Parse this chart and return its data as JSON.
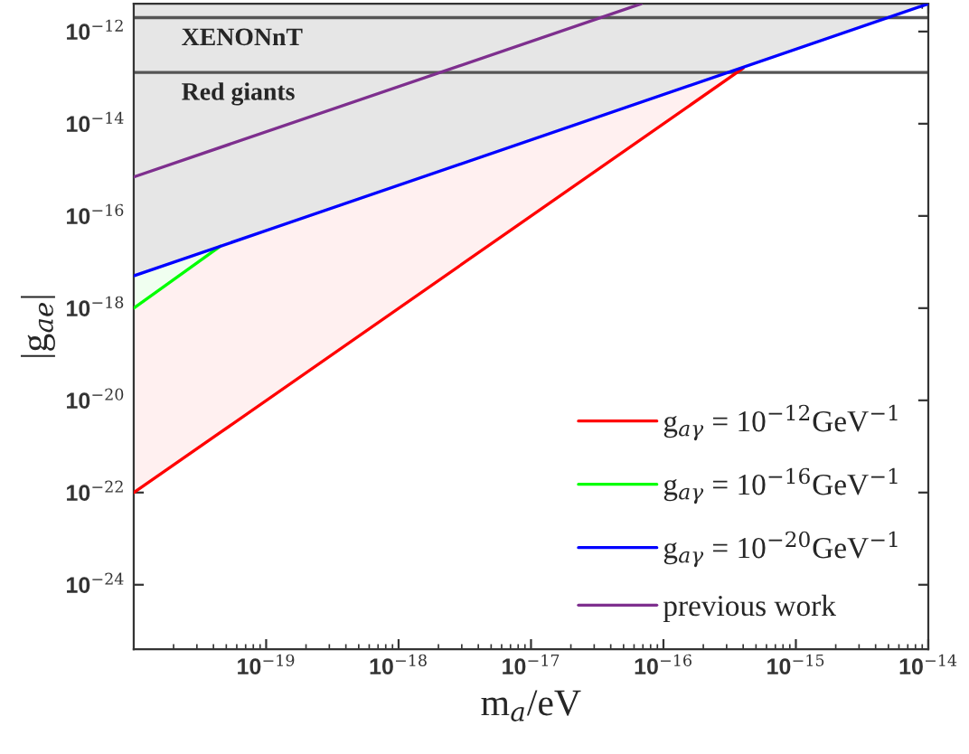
{
  "chart_data": {
    "type": "line",
    "xlabel": "m$_{a}$/eV",
    "ylabel": "|g$_{ae}$|",
    "log": "xy",
    "xlim": [
      1e-20,
      1e-14
    ],
    "ylim": [
      4e-26,
      4e-12
    ],
    "xticks": [
      {
        "value": 1e-19,
        "label": "10$^{−19}$"
      },
      {
        "value": 1e-18,
        "label": "10$^{−18}$"
      },
      {
        "value": 1e-17,
        "label": "10$^{−17}$"
      },
      {
        "value": 1e-16,
        "label": "10$^{−16}$"
      },
      {
        "value": 1e-15,
        "label": "10$^{−15}$"
      },
      {
        "value": 1e-14,
        "label": "10$^{−14}$"
      }
    ],
    "yticks": [
      {
        "value": 1e-24,
        "label": "10$^{−24}$"
      },
      {
        "value": 1e-22,
        "label": "10$^{−22}$"
      },
      {
        "value": 1e-20,
        "label": "10$^{−20}$"
      },
      {
        "value": 1e-18,
        "label": "10$^{−18}$"
      },
      {
        "value": 1e-16,
        "label": "10$^{−16}$"
      },
      {
        "value": 1e-14,
        "label": "10$^{−14}$"
      },
      {
        "value": 1e-12,
        "label": "10$^{−12}$"
      }
    ],
    "series": [
      {
        "name": "g$_{aγ}$ = 10$^{−12}$GeV$^{−1}$",
        "color": "#ff0000",
        "x": [
          1e-20,
          4.5e-20,
          4e-16
        ],
        "values": [
          1e-22,
          2e-21,
          1.6e-13
        ]
      },
      {
        "name": "g$_{aγ}$ = 10$^{−16}$GeV$^{−1}$",
        "color": "#00ff00",
        "x": [
          1e-20,
          4.5e-20
        ],
        "values": [
          1e-18,
          2.2e-17
        ]
      },
      {
        "name": "g$_{aγ}$ = 10$^{−20}$GeV$^{−1}$",
        "color": "#0000ff",
        "x": [
          1e-20,
          1e-14
        ],
        "values": [
          5e-18,
          4e-12
        ]
      },
      {
        "name": "previous work",
        "color": "#7e2f8e",
        "x": [
          1e-20,
          6.8e-17
        ],
        "values": [
          7e-16,
          4e-12
        ]
      }
    ],
    "ref_lines": [
      {
        "axis": "y",
        "value": 2e-12,
        "label": "XENONnT",
        "color": "#555555"
      },
      {
        "axis": "y",
        "value": 1.3e-13,
        "label": "Red giants",
        "color": "#555555"
      }
    ],
    "legend": "lower right",
    "marker": "none",
    "line_style": "solid"
  }
}
